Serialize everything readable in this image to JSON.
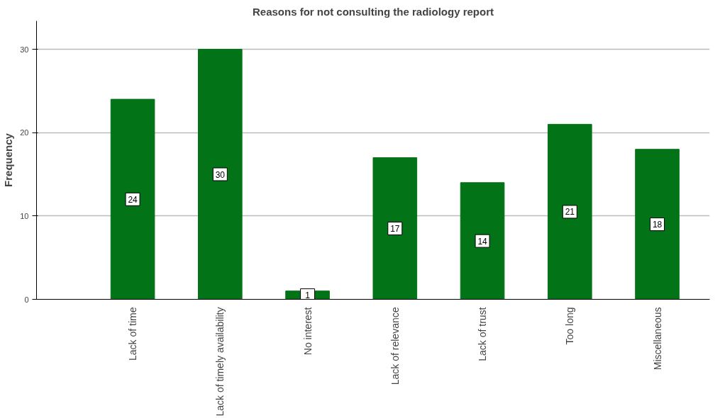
{
  "chart_data": {
    "type": "bar",
    "title": "Reasons for not consulting the radiology report",
    "ylabel": "Frequency",
    "categories": [
      "Lack of time",
      "Lack of timely availability",
      "No interest",
      "Lack of relevance",
      "Lack of trust",
      "Too long",
      "Miscellaneous"
    ],
    "values": [
      24,
      30,
      1,
      17,
      14,
      21,
      18
    ],
    "color": "#037317",
    "ylim": [
      0,
      33.4
    ],
    "yticks": [
      0,
      10,
      20,
      30
    ],
    "grid": "y",
    "data_labels": true
  }
}
